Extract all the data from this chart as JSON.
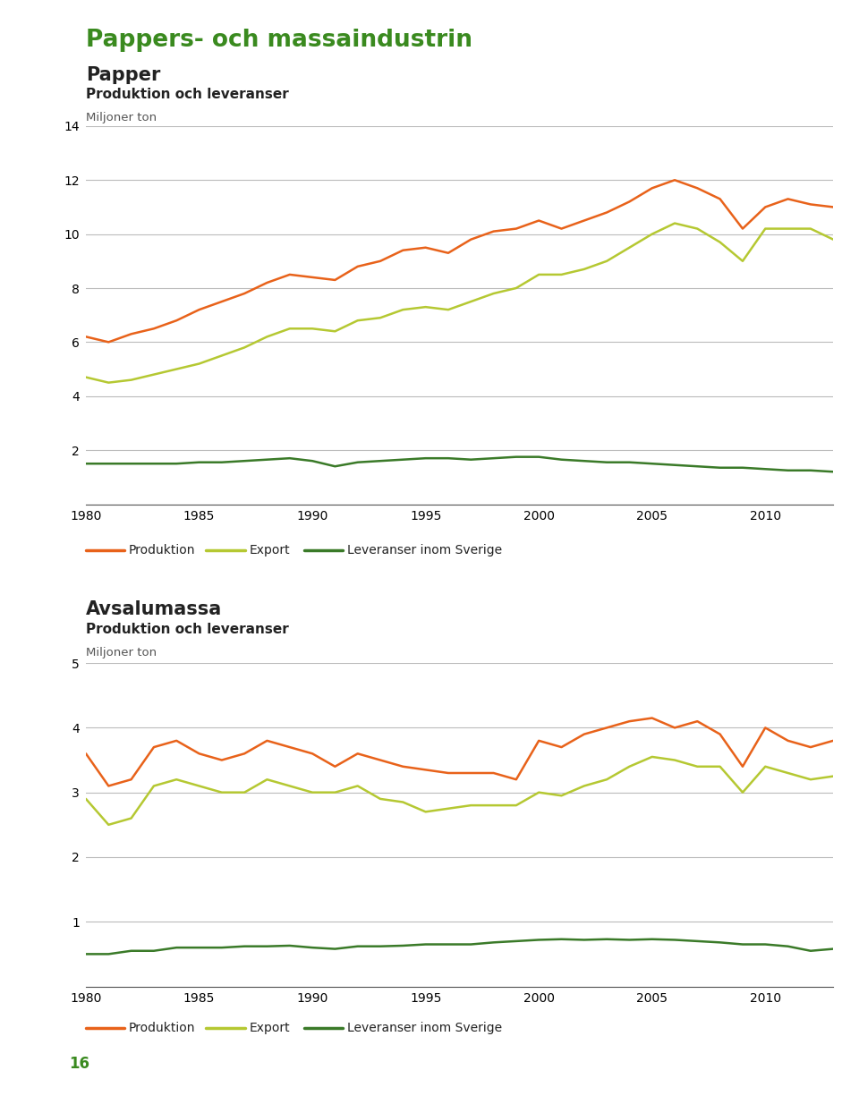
{
  "page_title": "Pappers- och massaindustrin",
  "page_title_color": "#3a8a1f",
  "page_title_divider_color": "#6aab2e",
  "background_color": "#ffffff",
  "page_number": "16",
  "page_number_color": "#3a8a1f",
  "chart1": {
    "title": "Papper",
    "subtitle": "Produktion och leveranser",
    "ylabel": "Miljoner ton",
    "ylim": [
      0,
      14
    ],
    "yticks": [
      0,
      2,
      4,
      6,
      8,
      10,
      12,
      14
    ],
    "xlim": [
      1980,
      2013
    ],
    "xticks": [
      1980,
      1985,
      1990,
      1995,
      2000,
      2005,
      2010
    ],
    "years": [
      1980,
      1981,
      1982,
      1983,
      1984,
      1985,
      1986,
      1987,
      1988,
      1989,
      1990,
      1991,
      1992,
      1993,
      1994,
      1995,
      1996,
      1997,
      1998,
      1999,
      2000,
      2001,
      2002,
      2003,
      2004,
      2005,
      2006,
      2007,
      2008,
      2009,
      2010,
      2011,
      2012,
      2013
    ],
    "produktion": [
      6.2,
      6.0,
      6.3,
      6.5,
      6.8,
      7.2,
      7.5,
      7.8,
      8.2,
      8.5,
      8.4,
      8.3,
      8.8,
      9.0,
      9.4,
      9.5,
      9.3,
      9.8,
      10.1,
      10.2,
      10.5,
      10.2,
      10.5,
      10.8,
      11.2,
      11.7,
      12.0,
      11.7,
      11.3,
      10.2,
      11.0,
      11.3,
      11.1,
      11.0
    ],
    "export": [
      4.7,
      4.5,
      4.6,
      4.8,
      5.0,
      5.2,
      5.5,
      5.8,
      6.2,
      6.5,
      6.5,
      6.4,
      6.8,
      6.9,
      7.2,
      7.3,
      7.2,
      7.5,
      7.8,
      8.0,
      8.5,
      8.5,
      8.7,
      9.0,
      9.5,
      10.0,
      10.4,
      10.2,
      9.7,
      9.0,
      10.2,
      10.2,
      10.2,
      9.8
    ],
    "leveranser": [
      1.5,
      1.5,
      1.5,
      1.5,
      1.5,
      1.55,
      1.55,
      1.6,
      1.65,
      1.7,
      1.6,
      1.4,
      1.55,
      1.6,
      1.65,
      1.7,
      1.7,
      1.65,
      1.7,
      1.75,
      1.75,
      1.65,
      1.6,
      1.55,
      1.55,
      1.5,
      1.45,
      1.4,
      1.35,
      1.35,
      1.3,
      1.25,
      1.25,
      1.2
    ],
    "legend_labels": [
      "Produktion",
      "Export",
      "Leveranser inom Sverige"
    ],
    "colors": [
      "#e8621a",
      "#b5c832",
      "#3a7a28"
    ]
  },
  "chart2": {
    "title": "Avsalumassa",
    "subtitle": "Produktion och leveranser",
    "ylabel": "Miljoner ton",
    "ylim": [
      0,
      5
    ],
    "yticks": [
      0,
      1,
      2,
      3,
      4,
      5
    ],
    "xlim": [
      1980,
      2013
    ],
    "xticks": [
      1980,
      1985,
      1990,
      1995,
      2000,
      2005,
      2010
    ],
    "years": [
      1980,
      1981,
      1982,
      1983,
      1984,
      1985,
      1986,
      1987,
      1988,
      1989,
      1990,
      1991,
      1992,
      1993,
      1994,
      1995,
      1996,
      1997,
      1998,
      1999,
      2000,
      2001,
      2002,
      2003,
      2004,
      2005,
      2006,
      2007,
      2008,
      2009,
      2010,
      2011,
      2012,
      2013
    ],
    "produktion": [
      3.6,
      3.1,
      3.2,
      3.7,
      3.8,
      3.6,
      3.5,
      3.6,
      3.8,
      3.7,
      3.6,
      3.4,
      3.6,
      3.5,
      3.4,
      3.35,
      3.3,
      3.3,
      3.3,
      3.2,
      3.8,
      3.7,
      3.9,
      4.0,
      4.1,
      4.15,
      4.0,
      4.1,
      3.9,
      3.4,
      4.0,
      3.8,
      3.7,
      3.8
    ],
    "export": [
      2.9,
      2.5,
      2.6,
      3.1,
      3.2,
      3.1,
      3.0,
      3.0,
      3.2,
      3.1,
      3.0,
      3.0,
      3.1,
      2.9,
      2.85,
      2.7,
      2.75,
      2.8,
      2.8,
      2.8,
      3.0,
      2.95,
      3.1,
      3.2,
      3.4,
      3.55,
      3.5,
      3.4,
      3.4,
      3.0,
      3.4,
      3.3,
      3.2,
      3.25
    ],
    "leveranser": [
      0.5,
      0.5,
      0.55,
      0.55,
      0.6,
      0.6,
      0.6,
      0.62,
      0.62,
      0.63,
      0.6,
      0.58,
      0.62,
      0.62,
      0.63,
      0.65,
      0.65,
      0.65,
      0.68,
      0.7,
      0.72,
      0.73,
      0.72,
      0.73,
      0.72,
      0.73,
      0.72,
      0.7,
      0.68,
      0.65,
      0.65,
      0.62,
      0.55,
      0.58
    ],
    "legend_labels": [
      "Produktion",
      "Export",
      "Leveranser inom Sverige"
    ],
    "colors": [
      "#e8621a",
      "#b5c832",
      "#3a7a28"
    ]
  },
  "grid_color": "#bbbbbb",
  "spine_color": "#555555",
  "text_color": "#222222",
  "legend_line_color_check": "#666666"
}
